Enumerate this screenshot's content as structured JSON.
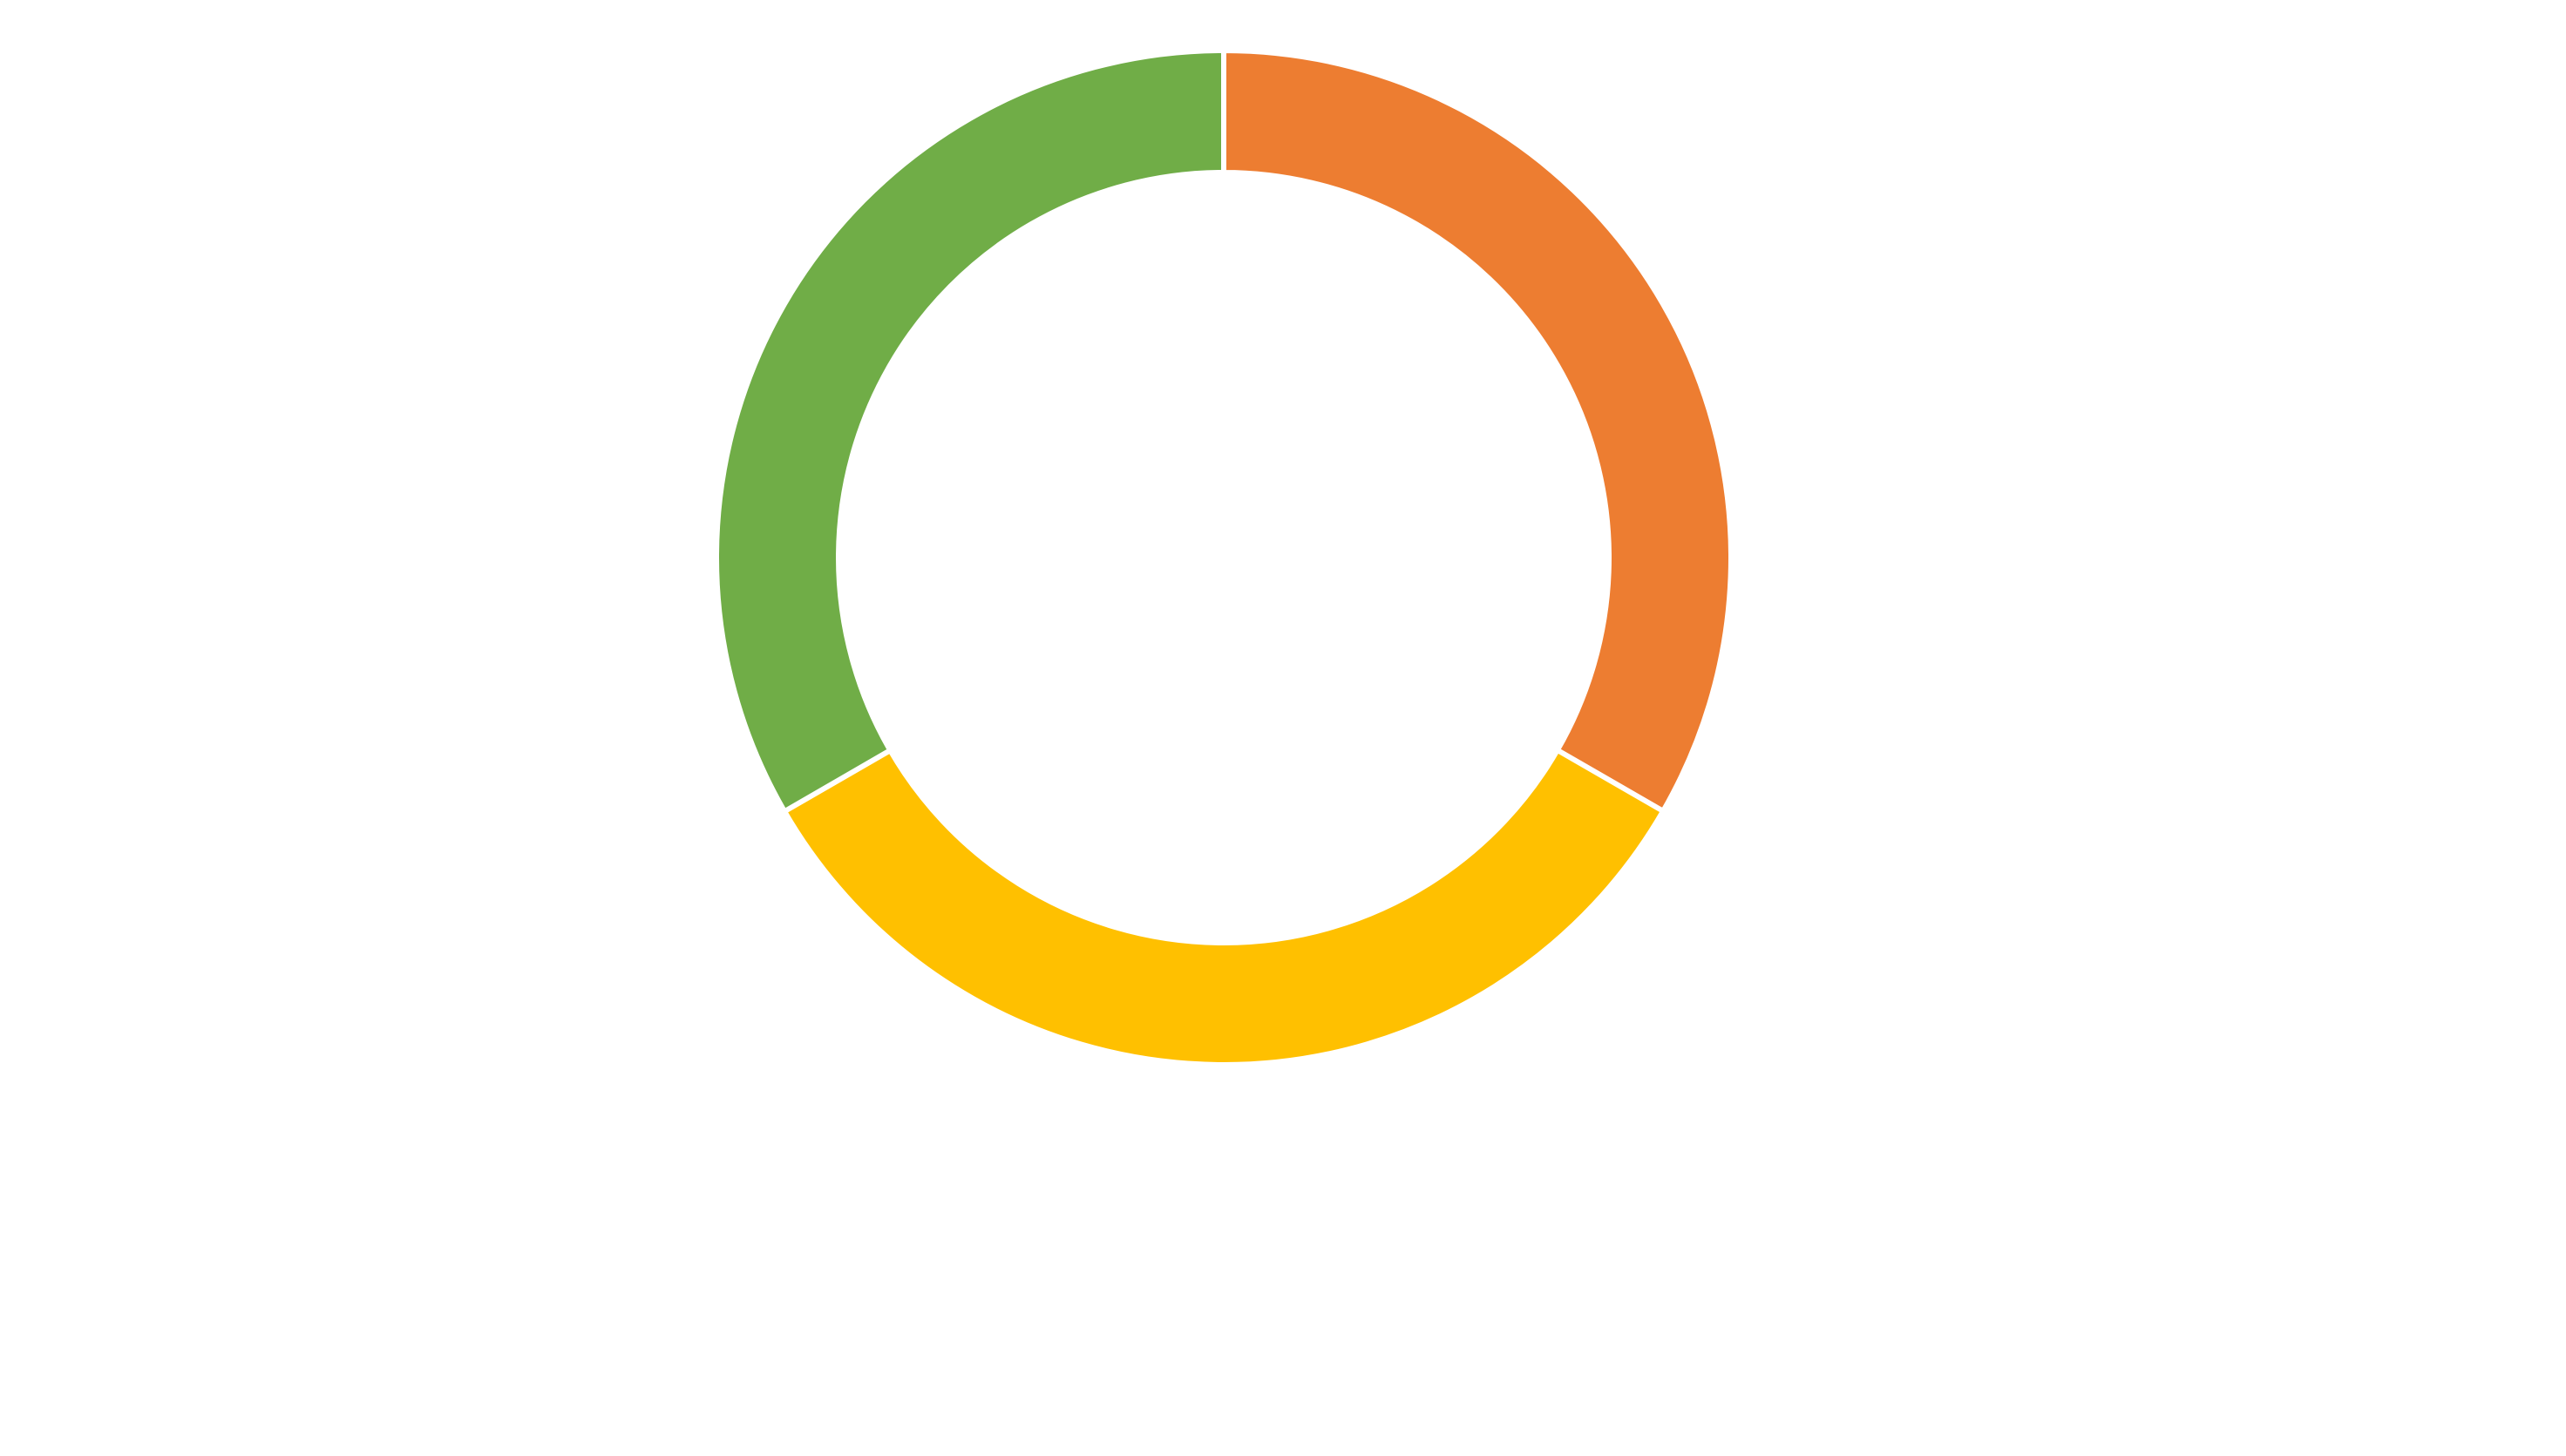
{
  "chart_data": {
    "type": "pie",
    "variant": "donut",
    "start_angle_deg": 0,
    "direction": "clockwise",
    "slice_separator_color": "#ffffff",
    "categories": [
      "",
      "",
      ""
    ],
    "values": [
      33.33,
      33.33,
      33.34
    ],
    "colors": [
      "#ED7D31",
      "#FFC000",
      "#70AD47"
    ],
    "legend": "none",
    "data_labels": "none"
  }
}
